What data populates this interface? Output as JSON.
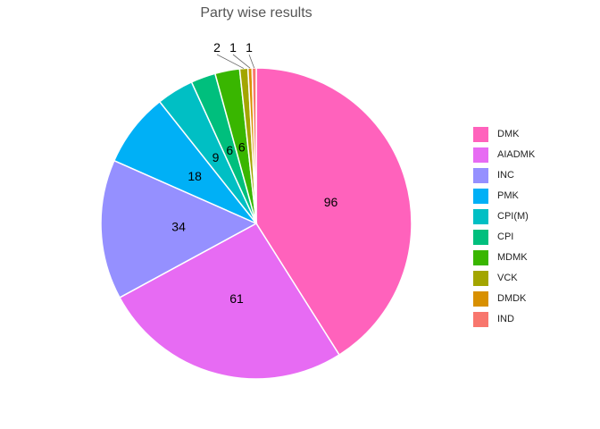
{
  "chart_data": {
    "type": "pie",
    "title": "Party wise results",
    "categories": [
      "DMK",
      "AIADMK",
      "INC",
      "PMK",
      "CPI(M)",
      "CPI",
      "MDMK",
      "VCK",
      "DMDK",
      "IND"
    ],
    "values": [
      96,
      61,
      34,
      18,
      9,
      6,
      6,
      2,
      1,
      1
    ],
    "colors": [
      "#FF62BC",
      "#E76BF3",
      "#9590FF",
      "#00B0F6",
      "#00BFC4",
      "#00BF7D",
      "#39B600",
      "#A3A500",
      "#D89000",
      "#F8766D"
    ],
    "data_labels": [
      "96",
      "61",
      "34",
      "18",
      "9",
      "6",
      "6",
      "2",
      "1",
      "1"
    ],
    "legend_position": "right",
    "start": "top",
    "direction": "clockwise"
  }
}
